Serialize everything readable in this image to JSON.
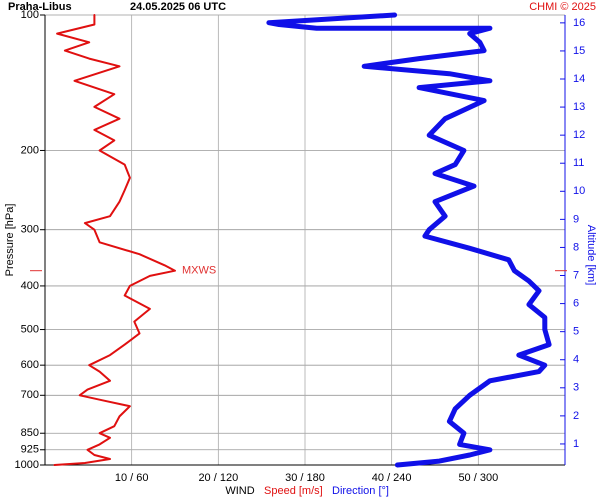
{
  "chart_data": {
    "type": "line",
    "title": "Praha-Libus",
    "subtitle": "24.05.2025 06 UTC",
    "credit": "CHMI © 2025",
    "ylabel": "Pressure [hPa]",
    "y2label": "Altitude [km]",
    "xlabel": "WIND",
    "ylog": true,
    "grid": true,
    "ylim": [
      1000,
      100
    ],
    "yticks": [
      100,
      200,
      300,
      400,
      500,
      600,
      700,
      850,
      925,
      1000
    ],
    "xlim": [
      0,
      60
    ],
    "x2lim": [
      0,
      360
    ],
    "xticks": [
      {
        "value": 10,
        "label": "10 / 60"
      },
      {
        "value": 20,
        "label": "20 / 120"
      },
      {
        "value": 30,
        "label": "30 / 180"
      },
      {
        "value": 40,
        "label": "40 / 240"
      },
      {
        "value": 50,
        "label": "50 / 300"
      }
    ],
    "y2lim": [
      0.25,
      16.28
    ],
    "y2ticks": [
      1,
      2,
      3,
      4,
      5,
      6,
      7,
      8,
      9,
      10,
      11,
      12,
      13,
      14,
      15,
      16
    ],
    "annotation": {
      "text": "MXWS",
      "pressure": 370,
      "color": "#e03030"
    },
    "series": [
      {
        "name": "Speed [m/s]",
        "color": "#e01010",
        "axis": "x",
        "y": [
          1000,
          990,
          970,
          950,
          925,
          900,
          870,
          850,
          820,
          780,
          740,
          720,
          700,
          680,
          650,
          620,
          600,
          570,
          540,
          510,
          480,
          450,
          420,
          400,
          380,
          370,
          360,
          340,
          320,
          300,
          290,
          280,
          260,
          245,
          230,
          215,
          200,
          190,
          180,
          170,
          160,
          150,
          140,
          130,
          125,
          120,
          115,
          110,
          105,
          100
        ],
        "values": [
          1.1,
          4.6,
          7.5,
          5.7,
          4.9,
          6.3,
          7.5,
          6.3,
          8,
          8.6,
          9.8,
          6.9,
          4,
          4.9,
          7.5,
          6.3,
          5.1,
          7.5,
          9.2,
          10.9,
          10.3,
          12.1,
          9.2,
          9.8,
          12.1,
          15,
          13.8,
          10.9,
          6.3,
          5.7,
          4.6,
          7.5,
          8.6,
          9.2,
          9.8,
          9.2,
          6.3,
          8,
          5.7,
          8.6,
          5.7,
          8,
          3.4,
          8.6,
          5.1,
          2.3,
          5.1,
          1.4,
          5.7,
          5.7
        ]
      },
      {
        "name": "Direction [°]",
        "color": "#1010e8",
        "axis": "x2",
        "y": [
          1000,
          980,
          950,
          925,
          900,
          850,
          800,
          750,
          700,
          650,
          620,
          600,
          570,
          540,
          500,
          470,
          440,
          410,
          390,
          370,
          350,
          330,
          310,
          300,
          280,
          260,
          240,
          225,
          215,
          200,
          185,
          170,
          155,
          145,
          140,
          135,
          130,
          125,
          120,
          115,
          110,
          107,
          107,
          105,
          104,
          100
        ],
        "values": [
          244,
          273,
          294,
          308,
          287,
          290,
          280,
          284,
          294,
          308,
          342,
          346,
          328,
          349,
          346,
          346,
          335,
          342,
          335,
          325,
          321,
          294,
          263,
          266,
          277,
          270,
          297,
          270,
          284,
          290,
          266,
          277,
          304,
          259,
          308,
          280,
          221,
          259,
          304,
          301,
          294,
          308,
          188,
          162,
          155,
          242
        ]
      }
    ]
  }
}
